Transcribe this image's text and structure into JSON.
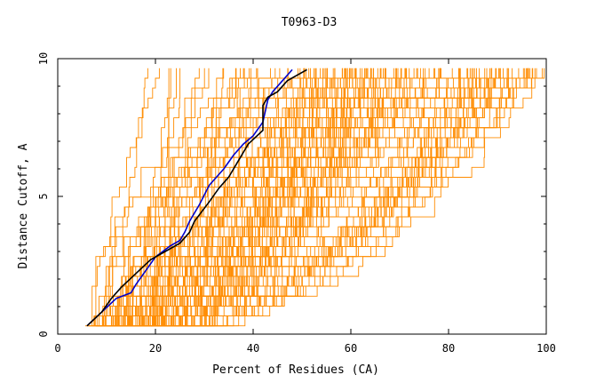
{
  "chart_data": {
    "type": "line",
    "title": "T0963-D3",
    "xlabel": "Percent of Residues (CA)",
    "ylabel": "Distance Cutoff, A",
    "xlim": [
      0,
      100
    ],
    "ylim": [
      0,
      10
    ],
    "x_ticks": [
      0,
      20,
      40,
      60,
      80,
      100
    ],
    "y_ticks": [
      0,
      5,
      10
    ],
    "grid": false,
    "background_colors": "#ff8c00",
    "background_curve_count": 150,
    "highlight_series": [
      {
        "color": "#0000cc",
        "points": [
          [
            6,
            0.3
          ],
          [
            9,
            0.8
          ],
          [
            12,
            1.3
          ],
          [
            15,
            1.5
          ],
          [
            16,
            1.8
          ],
          [
            18,
            2.3
          ],
          [
            20,
            2.8
          ],
          [
            23,
            3.2
          ],
          [
            25,
            3.4
          ],
          [
            26,
            3.7
          ],
          [
            27,
            4.1
          ],
          [
            29,
            4.7
          ],
          [
            31,
            5.4
          ],
          [
            34,
            6.0
          ],
          [
            36,
            6.5
          ],
          [
            38,
            6.9
          ],
          [
            40,
            7.2
          ],
          [
            42,
            7.7
          ],
          [
            43,
            8.5
          ],
          [
            44,
            8.8
          ],
          [
            46,
            9.2
          ],
          [
            48,
            9.6
          ]
        ]
      },
      {
        "color": "#000000",
        "points": [
          [
            6,
            0.3
          ],
          [
            9,
            0.8
          ],
          [
            11,
            1.3
          ],
          [
            13,
            1.7
          ],
          [
            16,
            2.2
          ],
          [
            19,
            2.7
          ],
          [
            22,
            3.0
          ],
          [
            25,
            3.3
          ],
          [
            27,
            3.7
          ],
          [
            28,
            4.1
          ],
          [
            31,
            4.8
          ],
          [
            33,
            5.3
          ],
          [
            35,
            5.7
          ],
          [
            37,
            6.3
          ],
          [
            39,
            6.9
          ],
          [
            42,
            7.4
          ],
          [
            42,
            8.3
          ],
          [
            43,
            8.6
          ],
          [
            45,
            8.8
          ],
          [
            47,
            9.2
          ],
          [
            51,
            9.6
          ]
        ]
      }
    ]
  }
}
